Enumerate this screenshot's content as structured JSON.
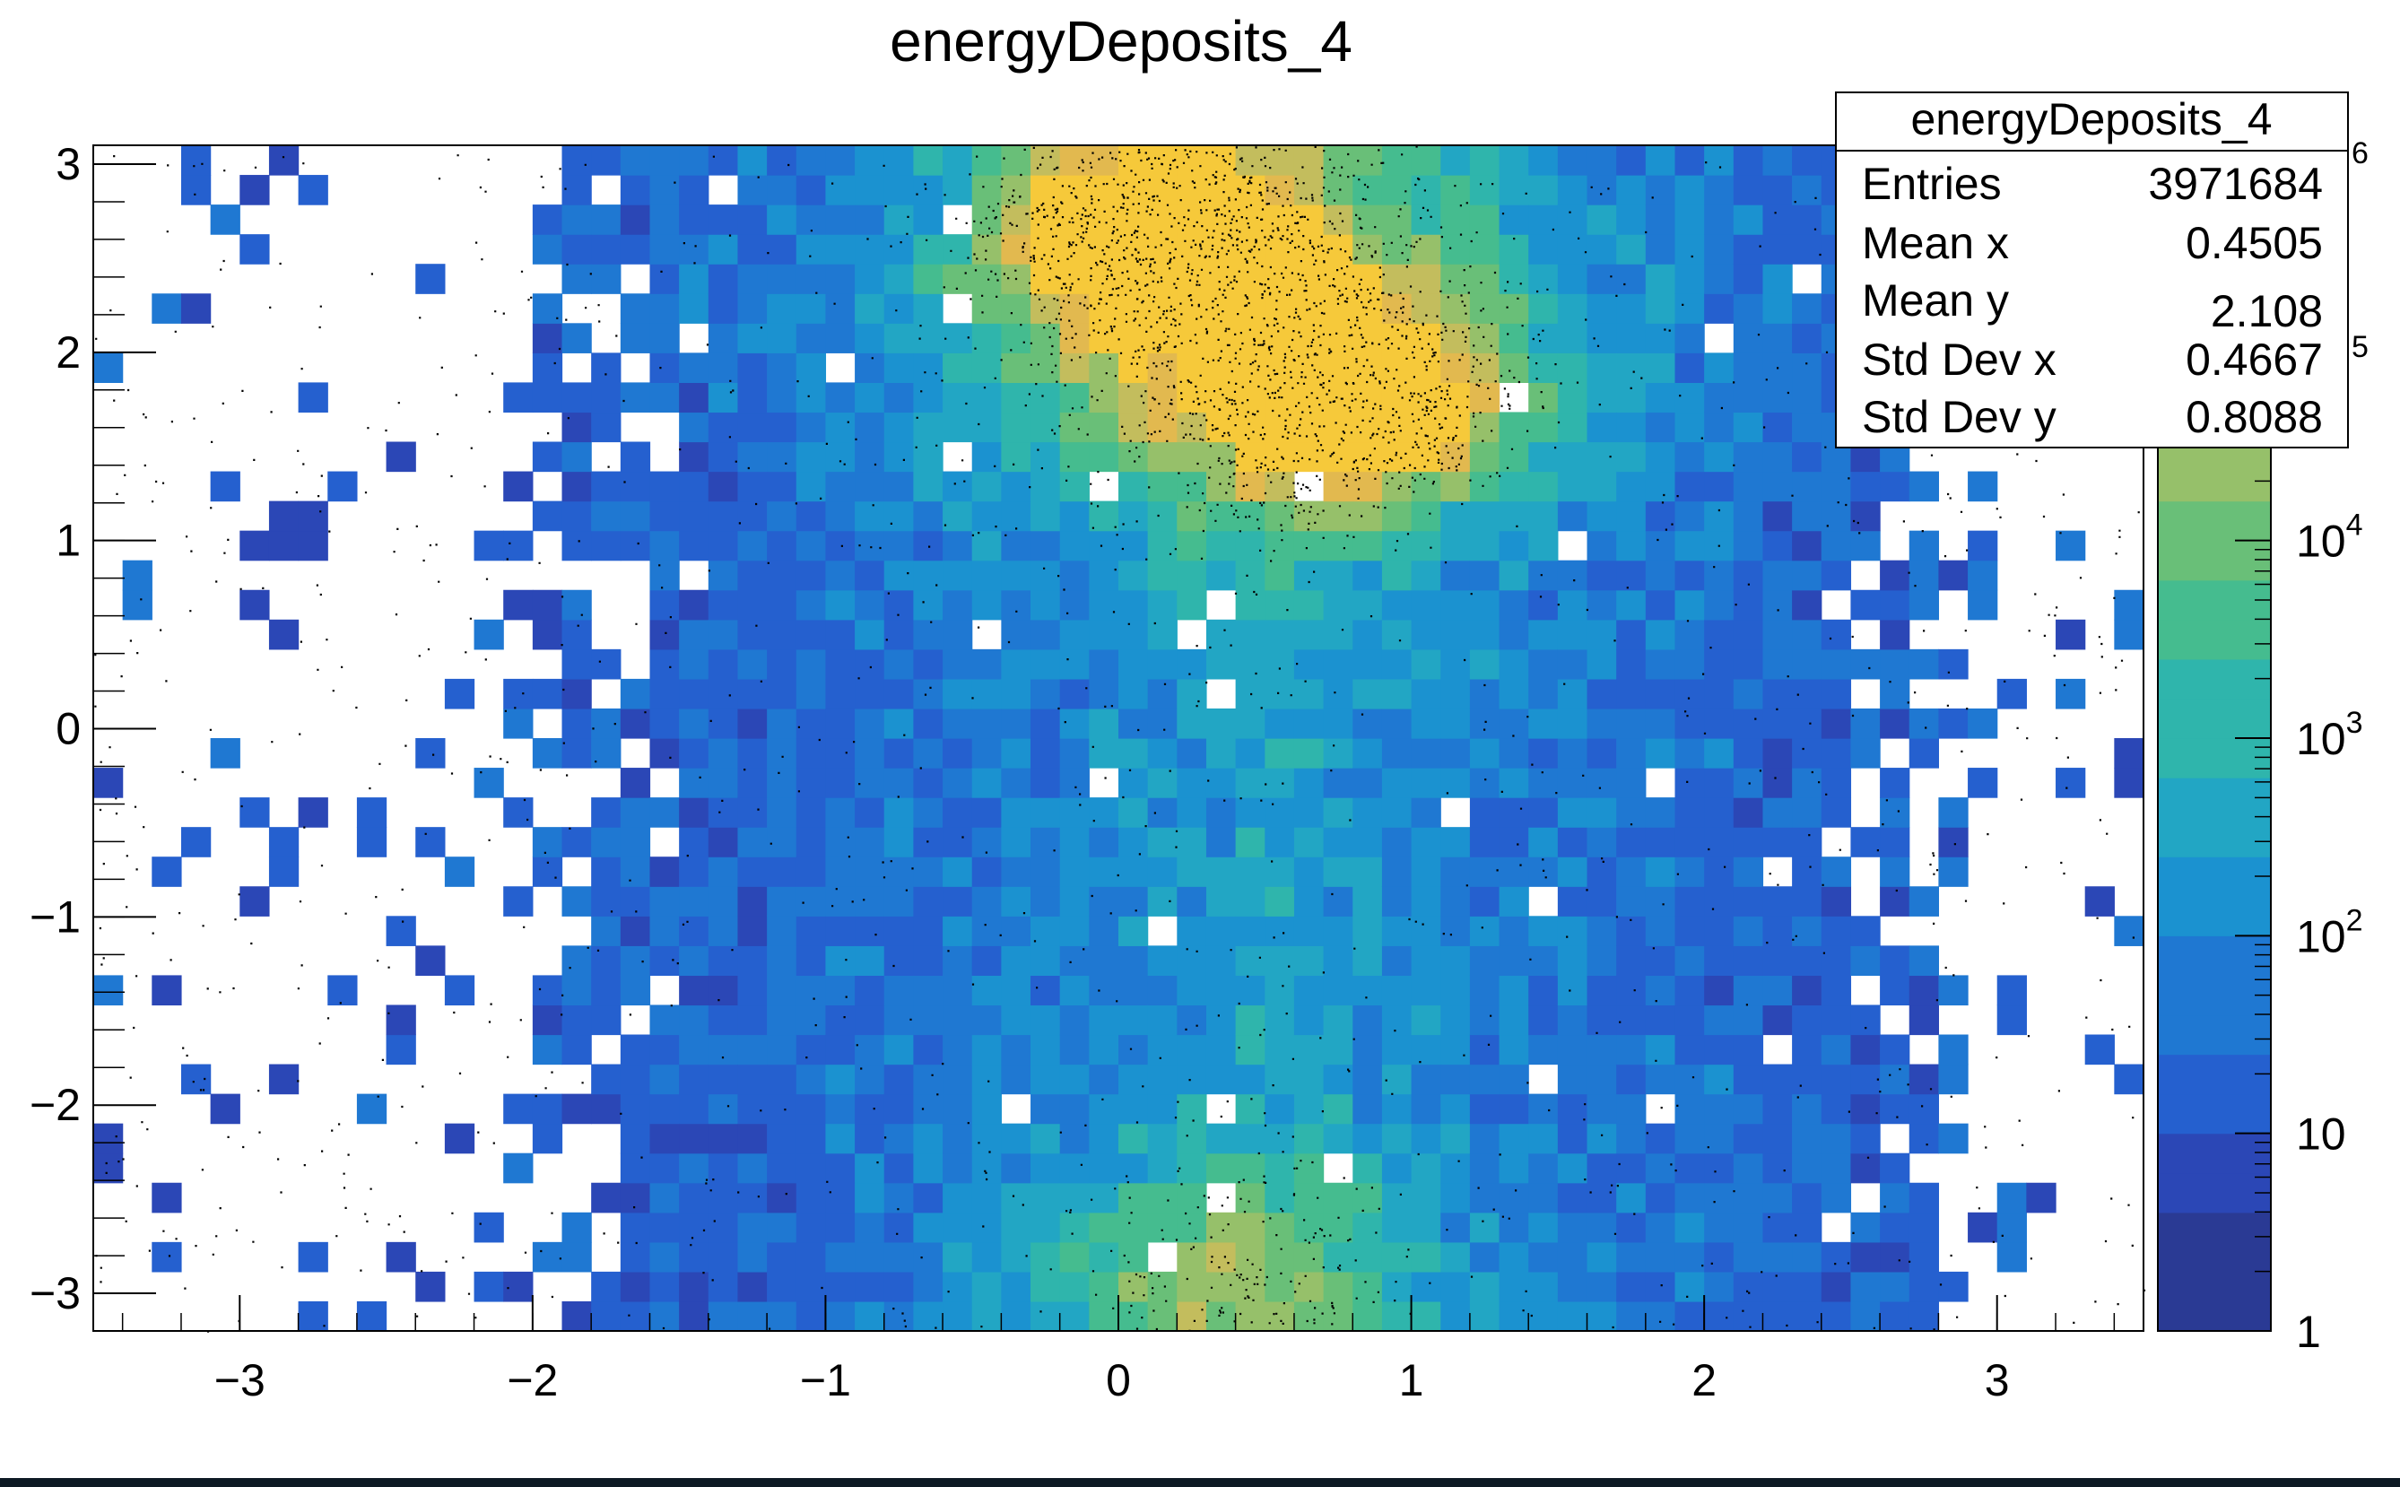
{
  "chart_data": {
    "type": "heatmap",
    "title": "energyDeposits_4",
    "xlabel": "",
    "ylabel": "",
    "xlim": [
      -3.5,
      3.5
    ],
    "ylim": [
      -3.2,
      3.1
    ],
    "x_ticks": [
      -3,
      -2,
      -1,
      0,
      1,
      2,
      3
    ],
    "x_tick_labels": [
      "−3",
      "−2",
      "−1",
      "0",
      "1",
      "2",
      "3"
    ],
    "y_ticks": [
      3,
      2,
      1,
      0,
      -1,
      -2,
      -3
    ],
    "y_tick_labels": [
      "3",
      "2",
      "1",
      "0",
      "−1",
      "−2",
      "−3"
    ],
    "z_scale": "log",
    "z_range": [
      1,
      1000000
    ],
    "color_ticks": [
      {
        "value": 1,
        "label": "1"
      },
      {
        "value": 10,
        "label": "10"
      },
      {
        "value": 100,
        "label": "10",
        "exp": "2"
      },
      {
        "value": 1000,
        "label": "10",
        "exp": "3"
      },
      {
        "value": 10000,
        "label": "10",
        "exp": "4"
      }
    ],
    "color_tick_fragments": [
      "5",
      "6"
    ],
    "grid": false,
    "hotspots": [
      {
        "x": 0.05,
        "y": 2.7,
        "level": "peak"
      },
      {
        "x": 0.85,
        "y": 1.7,
        "level": "peak"
      },
      {
        "x": 0.4,
        "y": 2.2,
        "level": "high"
      },
      {
        "x": 0.35,
        "y": -3.0,
        "level": "high"
      }
    ],
    "stats_box": {
      "title": "energyDeposits_4",
      "rows": [
        {
          "label": "Entries",
          "value": "3971684"
        },
        {
          "label": "Mean x",
          "value": "0.4505"
        },
        {
          "label": "Mean y",
          "value": "2.108"
        },
        {
          "label": "Std Dev x",
          "value": "0.4667"
        },
        {
          "label": "Std Dev y",
          "value": "0.8088"
        }
      ]
    },
    "palette": [
      "#2a3a94",
      "#2b47b6",
      "#2560cf",
      "#1f78d2",
      "#1b92d0",
      "#22a6c4",
      "#2fb5ac",
      "#45bc8f",
      "#69bf78",
      "#96c06a",
      "#c3bd5d",
      "#e2b94f",
      "#f6c93a"
    ]
  }
}
